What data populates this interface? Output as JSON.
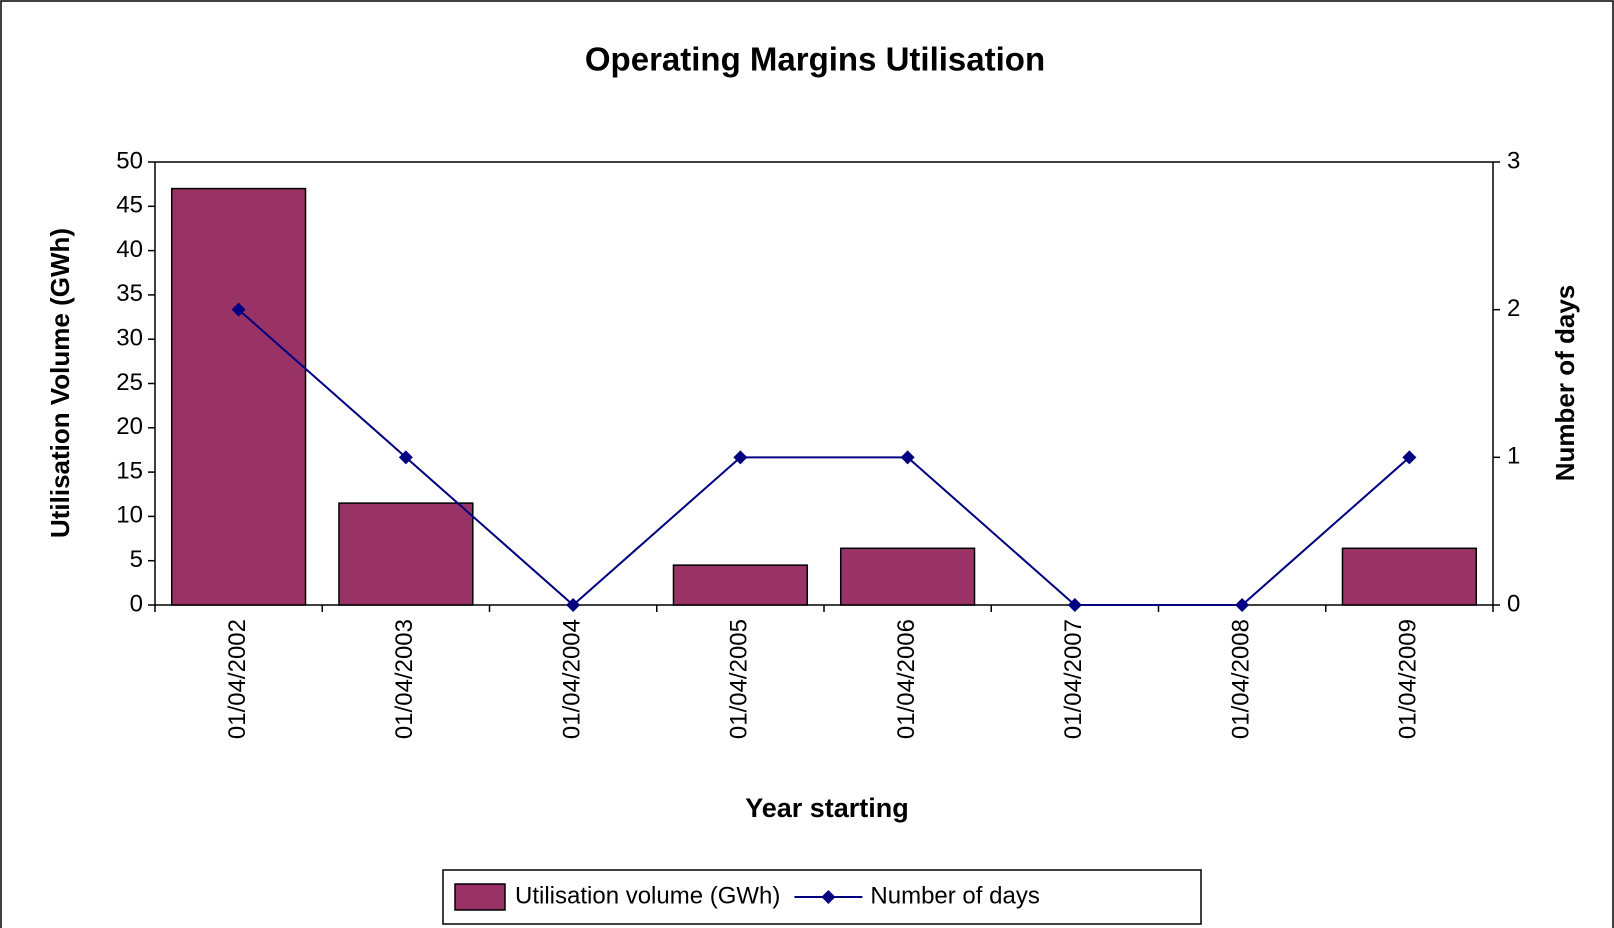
{
  "chart_data": {
    "type": "bar",
    "title": "Operating Margins Utilisation",
    "x_label": "Year starting",
    "y_label": "Utilisation Volume (GWh)",
    "y2_label": "Number of days",
    "categories": [
      "01/04/2002",
      "01/04/2003",
      "01/04/2004",
      "01/04/2005",
      "01/04/2006",
      "01/04/2007",
      "01/04/2008",
      "01/04/2009"
    ],
    "series": [
      {
        "name": "Utilisation volume (GWh)",
        "type": "bar",
        "color": "#993366",
        "values": [
          47,
          11.5,
          0,
          4.5,
          6.4,
          0,
          0,
          6.4
        ]
      },
      {
        "name": "Number of days",
        "type": "line",
        "axis": "y2",
        "color": "#000080",
        "values": [
          2,
          1,
          0,
          1,
          1,
          0,
          0,
          1
        ]
      }
    ],
    "ylim": [
      0,
      50
    ],
    "yticks": [
      0,
      5,
      10,
      15,
      20,
      25,
      30,
      35,
      40,
      45,
      50
    ],
    "y2lim": [
      0,
      3
    ],
    "y2ticks": [
      0,
      1,
      2,
      3
    ],
    "grid": false,
    "legend": "bottom"
  }
}
